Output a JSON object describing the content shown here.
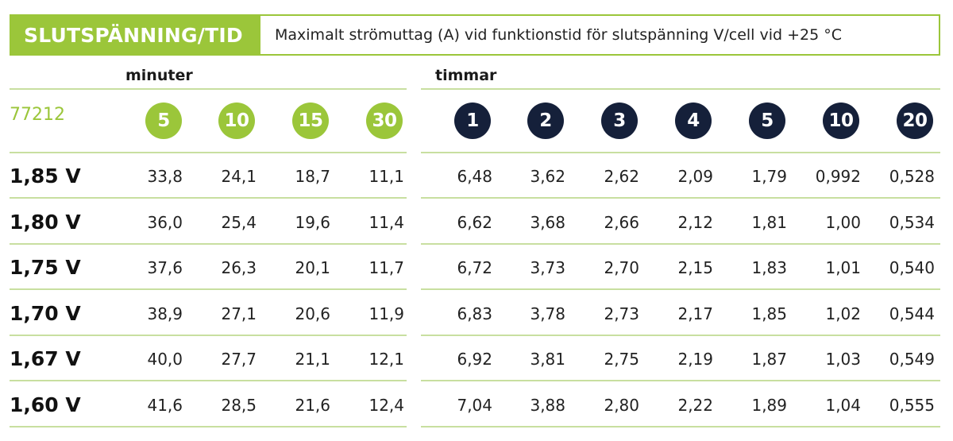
{
  "header": {
    "title": "SLUTSPÄNNING/TID",
    "description": "Maximalt strömuttag (A) vid funktionstid för slutspänning V/cell vid +25 °C"
  },
  "groups": {
    "minutes_label": "minuter",
    "hours_label": "timmar"
  },
  "product_code": "77212",
  "minute_columns": [
    "5",
    "10",
    "15",
    "30"
  ],
  "hour_columns": [
    "1",
    "2",
    "3",
    "4",
    "5",
    "10",
    "20"
  ],
  "rows": [
    {
      "label": "1,85 V",
      "values": [
        "33,8",
        "24,1",
        "18,7",
        "11,1",
        "6,48",
        "3,62",
        "2,62",
        "2,09",
        "1,79",
        "0,992",
        "0,528"
      ]
    },
    {
      "label": "1,80 V",
      "values": [
        "36,0",
        "25,4",
        "19,6",
        "11,4",
        "6,62",
        "3,68",
        "2,66",
        "2,12",
        "1,81",
        "1,00",
        "0,534"
      ]
    },
    {
      "label": "1,75 V",
      "values": [
        "37,6",
        "26,3",
        "20,1",
        "11,7",
        "6,72",
        "3,73",
        "2,70",
        "2,15",
        "1,83",
        "1,01",
        "0,540"
      ]
    },
    {
      "label": "1,70 V",
      "values": [
        "38,9",
        "27,1",
        "20,6",
        "11,9",
        "6,83",
        "3,78",
        "2,73",
        "2,17",
        "1,85",
        "1,02",
        "0,544"
      ]
    },
    {
      "label": "1,67 V",
      "values": [
        "40,0",
        "27,7",
        "21,1",
        "12,1",
        "6,92",
        "3,81",
        "2,75",
        "2,19",
        "1,87",
        "1,03",
        "0,549"
      ]
    },
    {
      "label": "1,60 V",
      "values": [
        "41,6",
        "28,5",
        "21,6",
        "12,4",
        "7,04",
        "3,88",
        "2,80",
        "2,22",
        "1,89",
        "1,04",
        "0,555"
      ]
    }
  ],
  "colors": {
    "accent_green": "#9bc63a",
    "navy": "#15203a",
    "divider": "#c8dfa0"
  }
}
